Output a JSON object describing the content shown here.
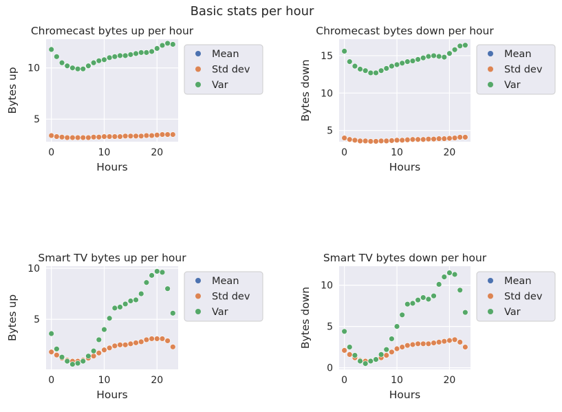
{
  "suptitle": "Basic stats per hour",
  "colors": {
    "panel_bg": "#eaeaf2",
    "grid": "#ffffff",
    "mean": "#4c72b0",
    "std": "#dd8452",
    "var": "#55a868"
  },
  "chart_data": [
    {
      "type": "scatter",
      "title": "Chromecast bytes up per hour",
      "xlabel": "Hours",
      "ylabel": "Bytes up",
      "xlim": [
        -1,
        24
      ],
      "ylim": [
        2.8,
        12.8
      ],
      "xticks": [
        0,
        10,
        20
      ],
      "yticks": [
        5,
        10
      ],
      "grid": true,
      "legend": "outside right",
      "series": [
        {
          "name": "Mean",
          "values": []
        },
        {
          "name": "Std dev",
          "values": [
            3.4,
            3.3,
            3.25,
            3.2,
            3.2,
            3.2,
            3.2,
            3.2,
            3.25,
            3.25,
            3.3,
            3.3,
            3.3,
            3.3,
            3.35,
            3.35,
            3.35,
            3.35,
            3.4,
            3.4,
            3.45,
            3.5,
            3.5,
            3.5
          ]
        },
        {
          "name": "Var",
          "values": [
            11.8,
            11.1,
            10.5,
            10.2,
            10.0,
            9.9,
            9.9,
            10.2,
            10.5,
            10.7,
            10.8,
            11.0,
            11.1,
            11.2,
            11.2,
            11.3,
            11.4,
            11.5,
            11.5,
            11.6,
            11.9,
            12.2,
            12.4,
            12.3
          ]
        }
      ]
    },
    {
      "type": "scatter",
      "title": "Chromecast bytes down per hour",
      "xlabel": "Hours",
      "ylabel": "Bytes down",
      "xlim": [
        -1,
        24
      ],
      "ylim": [
        3.5,
        17.2
      ],
      "xticks": [
        0,
        10,
        20
      ],
      "yticks": [
        5,
        10,
        15
      ],
      "grid": true,
      "legend": "outside right",
      "series": [
        {
          "name": "Mean",
          "values": []
        },
        {
          "name": "Std dev",
          "values": [
            4.0,
            3.8,
            3.7,
            3.6,
            3.6,
            3.55,
            3.55,
            3.6,
            3.6,
            3.65,
            3.7,
            3.7,
            3.75,
            3.8,
            3.8,
            3.8,
            3.85,
            3.85,
            3.9,
            3.9,
            3.95,
            4.0,
            4.1,
            4.1
          ]
        },
        {
          "name": "Var",
          "values": [
            15.6,
            14.2,
            13.6,
            13.2,
            13.0,
            12.7,
            12.7,
            13.0,
            13.3,
            13.6,
            13.8,
            14.0,
            14.2,
            14.3,
            14.5,
            14.7,
            14.9,
            15.0,
            14.9,
            14.8,
            15.3,
            15.8,
            16.3,
            16.4
          ]
        }
      ]
    },
    {
      "type": "scatter",
      "title": "Smart TV bytes up per hour",
      "xlabel": "Hours",
      "ylabel": "Bytes up",
      "xlim": [
        -1,
        24
      ],
      "ylim": [
        0.1,
        10.2
      ],
      "xticks": [
        0,
        10,
        20
      ],
      "yticks": [
        5,
        10
      ],
      "grid": true,
      "legend": "outside right",
      "series": [
        {
          "name": "Mean",
          "values": []
        },
        {
          "name": "Std dev",
          "values": [
            1.8,
            1.5,
            1.2,
            1.0,
            0.9,
            0.9,
            1.0,
            1.2,
            1.4,
            1.7,
            2.0,
            2.2,
            2.4,
            2.5,
            2.5,
            2.6,
            2.7,
            2.8,
            3.0,
            3.1,
            3.1,
            3.1,
            2.9,
            2.3
          ]
        },
        {
          "name": "Var",
          "values": [
            3.6,
            2.1,
            1.3,
            0.9,
            0.6,
            0.7,
            0.9,
            1.4,
            1.9,
            3.0,
            4.0,
            5.1,
            6.1,
            6.2,
            6.5,
            6.8,
            6.9,
            7.5,
            8.6,
            9.3,
            9.7,
            9.6,
            8.0,
            5.6
          ]
        }
      ]
    },
    {
      "type": "scatter",
      "title": "Smart TV bytes down per hour",
      "xlabel": "Hours",
      "ylabel": "Bytes down",
      "xlim": [
        -1,
        24
      ],
      "ylim": [
        -0.2,
        12.3
      ],
      "xticks": [
        0,
        10,
        20
      ],
      "yticks": [
        0,
        5,
        10
      ],
      "grid": true,
      "legend": "outside right",
      "series": [
        {
          "name": "Mean",
          "values": []
        },
        {
          "name": "Std dev",
          "values": [
            2.1,
            1.6,
            1.2,
            0.9,
            0.8,
            0.8,
            1.0,
            1.2,
            1.5,
            1.9,
            2.3,
            2.5,
            2.7,
            2.8,
            2.9,
            2.9,
            2.9,
            3.0,
            3.1,
            3.2,
            3.3,
            3.4,
            3.1,
            2.5
          ]
        },
        {
          "name": "Var",
          "values": [
            4.4,
            2.5,
            1.5,
            0.8,
            0.5,
            0.8,
            1.0,
            1.6,
            2.2,
            3.5,
            5.0,
            6.4,
            7.7,
            7.8,
            8.2,
            8.5,
            8.3,
            8.7,
            10.1,
            11.0,
            11.5,
            11.3,
            9.4,
            6.7
          ]
        }
      ]
    }
  ]
}
